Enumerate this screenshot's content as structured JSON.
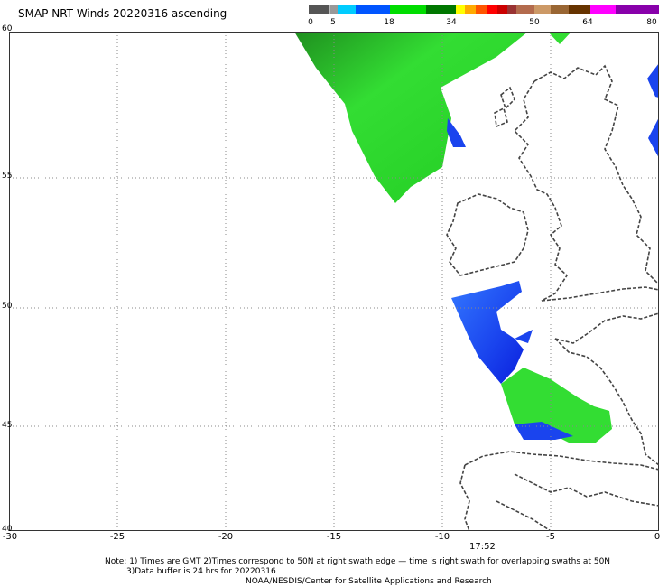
{
  "title": "SMAP NRT Winds 20220316 ascending",
  "colorbar": {
    "labels": [
      "0",
      "5",
      "18",
      "34",
      "50",
      "64",
      "80"
    ]
  },
  "axes": {
    "lat_labels": [
      "60",
      "55",
      "50",
      "45",
      "40"
    ],
    "lon_labels": [
      "-30",
      "-25",
      "-20",
      "-15",
      "-10",
      "-5",
      "0"
    ]
  },
  "time_label": "17:52",
  "notes": {
    "line1": "Note: 1) Times are GMT 2)Times correspond to 50N at right swath edge — time is right swath for overlapping swaths at 50N",
    "line2": "3)Data buffer is 24 hrs for 20220316",
    "line3": "NOAA/NESDIS/Center for Satellite Applications and Research"
  },
  "colors": {
    "light_green": "#33dd33",
    "dark_green": "#1a7a1a",
    "blue": "#1a4ddd",
    "coast": "#444444"
  }
}
